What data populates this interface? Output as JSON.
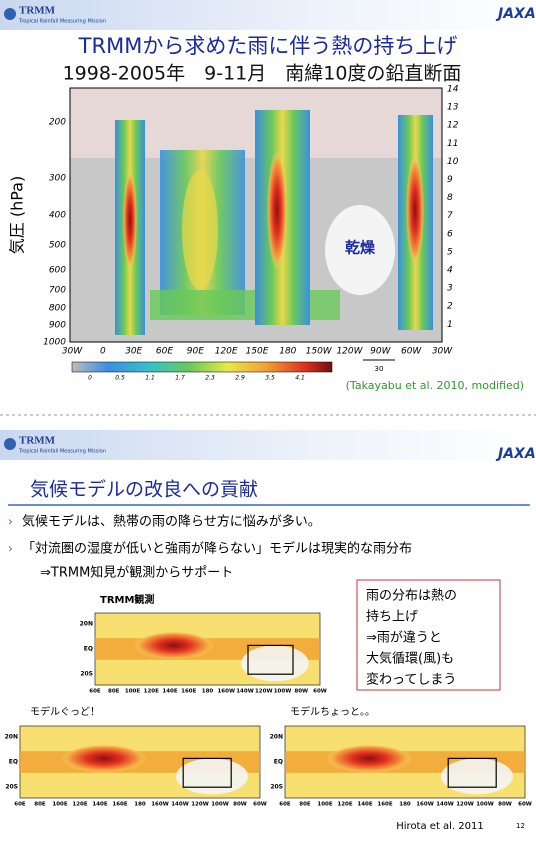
{
  "slide1": {
    "logo": "TRMM",
    "logo_sub": "Tropical Rainfall Measuring Mission",
    "agency": "JAXA",
    "title_line1": "TRMMから求めた雨に伴う熱の持ち上げ",
    "title_line2": "1998-2005年　9-11月　南緯10度の鉛直断面",
    "y_label": "気圧 (hPa)",
    "pressure_ticks": [
      200,
      300,
      400,
      500,
      600,
      700,
      800,
      900,
      1000
    ],
    "height_ticks": [
      14,
      13,
      12,
      11,
      10,
      9,
      8,
      7,
      6,
      5,
      4,
      3,
      2,
      1
    ],
    "lon_ticks": [
      "30W",
      "0",
      "30E",
      "60E",
      "90E",
      "120E",
      "150E",
      "180",
      "150W",
      "120W",
      "90W",
      "60W",
      "30W"
    ],
    "colorbar_ticks": [
      "0",
      "0.5",
      "1.1",
      "1.7",
      "2.3",
      "2.9",
      "3.5",
      "4.1"
    ],
    "vector_scale": "30",
    "dry_label": "乾燥",
    "citation": "(Takayabu et al. 2010, modified)"
  },
  "slide2": {
    "logo": "TRMM",
    "logo_sub": "Tropical Rainfall Measuring Mission",
    "agency": "JAXA",
    "title": "気候モデルの改良への貢献",
    "bullets": [
      "気候モデルは、熱帯の雨の降らせ方に悩みが多い。",
      "「対流圏の湿度が低いと強雨が降らない」モデルは現実的な雨分布"
    ],
    "sub_line": "⇒TRMM知見が観測からサポート",
    "note_box": [
      "雨の分布は熱の",
      "持ち上げ",
      "⇒雨が違うと",
      "大気循環(風)も",
      "変わってしまう"
    ],
    "maps": [
      "TRMM観測",
      "モデルぐっど！",
      "モデルちょっと。。"
    ],
    "lat_labels": [
      "20N",
      "EQ",
      "20S"
    ],
    "lon_labels": [
      "60E",
      "80E",
      "100E",
      "120E",
      "140E",
      "160E",
      "180",
      "160W",
      "140W",
      "120W",
      "100W",
      "80W",
      "60W"
    ],
    "citation": "Hirota et al. 2011",
    "page_number": "12"
  }
}
